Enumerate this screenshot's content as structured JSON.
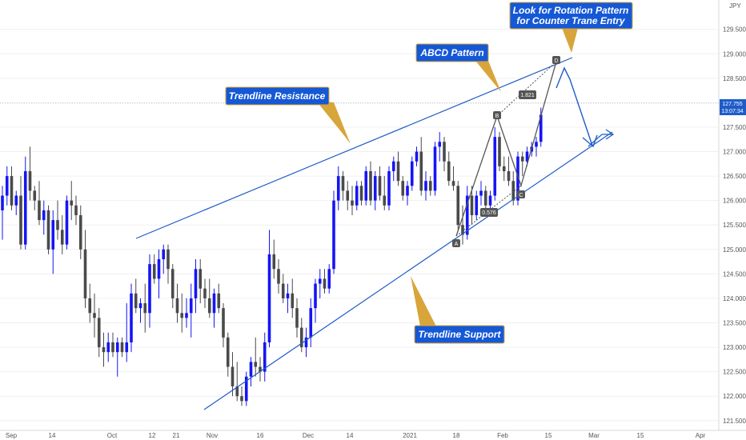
{
  "chart_data": {
    "type": "candlestick",
    "symbol_currency": "JPY",
    "ylim": [
      121.3,
      130.1
    ],
    "y_ticks": [
      "121.500",
      "122.000",
      "122.500",
      "123.000",
      "123.500",
      "124.000",
      "124.500",
      "125.000",
      "125.500",
      "126.000",
      "126.500",
      "127.000",
      "127.500",
      "128.000",
      "128.500",
      "129.000",
      "129.500"
    ],
    "x_labels": [
      "Sep",
      "14",
      "Oct",
      "12",
      "21",
      "Nov",
      "16",
      "Dec",
      "14",
      "2021",
      "18",
      "Feb",
      "15",
      "Mar",
      "15",
      "Apr"
    ],
    "current_price": "127.755",
    "countdown": "13:07:34",
    "candles": [
      [
        125.8,
        126.3,
        125.2,
        126.1
      ],
      [
        126.1,
        126.7,
        125.9,
        126.5
      ],
      [
        126.5,
        126.7,
        125.8,
        125.9
      ],
      [
        125.9,
        126.2,
        125.7,
        126.1
      ],
      [
        126.1,
        126.5,
        125.0,
        125.1
      ],
      [
        125.1,
        126.9,
        125.0,
        126.6
      ],
      [
        126.6,
        127.1,
        126.0,
        126.2
      ],
      [
        126.2,
        126.3,
        125.8,
        126.0
      ],
      [
        126.0,
        126.4,
        125.5,
        125.6
      ],
      [
        125.6,
        126.0,
        125.3,
        125.8
      ],
      [
        125.8,
        125.9,
        124.9,
        125.0
      ],
      [
        125.0,
        125.8,
        124.5,
        125.6
      ],
      [
        125.6,
        126.0,
        125.2,
        125.4
      ],
      [
        125.4,
        125.7,
        124.9,
        125.1
      ],
      [
        125.1,
        126.1,
        125.0,
        126.0
      ],
      [
        126.0,
        126.4,
        125.6,
        125.9
      ],
      [
        125.9,
        126.1,
        125.5,
        125.7
      ],
      [
        125.7,
        125.9,
        124.8,
        125.0
      ],
      [
        125.0,
        125.4,
        123.8,
        124.0
      ],
      [
        124.0,
        124.3,
        123.5,
        123.7
      ],
      [
        123.7,
        124.1,
        123.2,
        123.6
      ],
      [
        123.6,
        123.8,
        122.8,
        123.0
      ],
      [
        123.0,
        123.3,
        122.6,
        122.9
      ],
      [
        122.9,
        123.3,
        122.7,
        123.1
      ],
      [
        123.1,
        123.3,
        122.8,
        122.9
      ],
      [
        122.9,
        123.2,
        122.4,
        123.1
      ],
      [
        123.1,
        123.2,
        122.8,
        122.9
      ],
      [
        122.9,
        123.9,
        122.7,
        123.1
      ],
      [
        123.1,
        124.3,
        122.9,
        124.1
      ],
      [
        124.1,
        124.4,
        123.7,
        123.8
      ],
      [
        123.8,
        124.0,
        123.5,
        123.9
      ],
      [
        123.9,
        124.3,
        123.3,
        123.7
      ],
      [
        123.7,
        124.9,
        123.4,
        124.7
      ],
      [
        124.7,
        124.9,
        124.3,
        124.4
      ],
      [
        124.4,
        125.0,
        124.0,
        124.8
      ],
      [
        124.8,
        125.1,
        124.5,
        125.0
      ],
      [
        125.0,
        125.1,
        124.3,
        124.6
      ],
      [
        124.6,
        124.7,
        123.8,
        124.0
      ],
      [
        124.0,
        124.3,
        123.5,
        123.7
      ],
      [
        123.7,
        124.1,
        123.3,
        123.6
      ],
      [
        123.6,
        124.0,
        123.4,
        123.7
      ],
      [
        123.7,
        124.3,
        123.2,
        124.0
      ],
      [
        124.0,
        124.8,
        123.7,
        124.6
      ],
      [
        124.6,
        124.8,
        123.9,
        124.2
      ],
      [
        124.2,
        124.4,
        123.8,
        124.0
      ],
      [
        124.0,
        124.4,
        123.6,
        123.7
      ],
      [
        123.7,
        124.2,
        123.4,
        124.1
      ],
      [
        124.1,
        124.3,
        123.7,
        123.8
      ],
      [
        123.8,
        123.9,
        123.0,
        123.2
      ],
      [
        123.2,
        123.3,
        122.4,
        122.6
      ],
      [
        122.6,
        122.9,
        122.0,
        122.2
      ],
      [
        122.2,
        122.7,
        121.9,
        122.0
      ],
      [
        122.0,
        122.2,
        121.8,
        121.9
      ],
      [
        121.9,
        122.5,
        121.8,
        122.4
      ],
      [
        122.4,
        122.8,
        122.2,
        122.7
      ],
      [
        122.7,
        123.2,
        122.4,
        122.6
      ],
      [
        122.6,
        122.8,
        122.3,
        122.5
      ],
      [
        122.5,
        123.3,
        122.3,
        123.1
      ],
      [
        123.1,
        125.4,
        123.0,
        124.9
      ],
      [
        124.9,
        125.2,
        124.4,
        124.6
      ],
      [
        124.6,
        124.8,
        124.1,
        124.3
      ],
      [
        124.3,
        124.5,
        123.9,
        124.0
      ],
      [
        124.0,
        124.3,
        123.7,
        124.1
      ],
      [
        124.1,
        124.4,
        123.6,
        123.8
      ],
      [
        123.8,
        124.0,
        123.2,
        123.4
      ],
      [
        123.4,
        123.6,
        122.9,
        123.0
      ],
      [
        123.0,
        123.4,
        122.8,
        123.2
      ],
      [
        123.2,
        124.0,
        123.0,
        123.8
      ],
      [
        123.8,
        124.4,
        123.5,
        124.3
      ],
      [
        124.3,
        124.6,
        124.0,
        124.4
      ],
      [
        124.4,
        124.6,
        124.1,
        124.2
      ],
      [
        124.2,
        124.7,
        124.1,
        124.6
      ],
      [
        124.6,
        126.2,
        124.5,
        126.0
      ],
      [
        126.0,
        126.7,
        125.8,
        126.5
      ],
      [
        126.5,
        126.6,
        126.0,
        126.2
      ],
      [
        126.2,
        126.4,
        125.8,
        126.0
      ],
      [
        126.0,
        126.3,
        125.7,
        125.9
      ],
      [
        125.9,
        126.4,
        125.8,
        126.3
      ],
      [
        126.3,
        126.4,
        125.9,
        126.0
      ],
      [
        126.0,
        126.7,
        125.9,
        126.6
      ],
      [
        126.6,
        126.8,
        125.9,
        126.0
      ],
      [
        126.0,
        126.6,
        125.8,
        126.5
      ],
      [
        126.5,
        126.7,
        126.0,
        126.1
      ],
      [
        126.1,
        126.5,
        125.8,
        125.9
      ],
      [
        125.9,
        126.7,
        125.8,
        126.6
      ],
      [
        126.6,
        126.9,
        126.4,
        126.8
      ],
      [
        126.8,
        127.0,
        126.3,
        126.4
      ],
      [
        126.4,
        126.5,
        126.0,
        126.1
      ],
      [
        126.1,
        126.4,
        125.9,
        126.3
      ],
      [
        126.3,
        126.9,
        126.2,
        126.8
      ],
      [
        126.8,
        127.1,
        126.7,
        127.0
      ],
      [
        127.0,
        127.3,
        126.1,
        126.2
      ],
      [
        126.2,
        126.6,
        126.0,
        126.4
      ],
      [
        126.4,
        126.5,
        126.1,
        126.2
      ],
      [
        126.2,
        127.2,
        126.1,
        127.1
      ],
      [
        127.1,
        127.4,
        126.8,
        127.2
      ],
      [
        127.2,
        127.3,
        126.6,
        126.8
      ],
      [
        126.8,
        127.0,
        126.3,
        126.4
      ],
      [
        126.4,
        126.7,
        126.2,
        126.3
      ],
      [
        126.3,
        126.4,
        125.4,
        125.5
      ],
      [
        125.5,
        125.9,
        125.1,
        125.3
      ],
      [
        125.3,
        126.3,
        125.2,
        126.1
      ],
      [
        126.1,
        126.3,
        125.5,
        125.7
      ],
      [
        125.7,
        126.2,
        125.6,
        126.1
      ],
      [
        126.1,
        126.4,
        125.9,
        126.2
      ],
      [
        126.2,
        126.3,
        125.8,
        125.9
      ],
      [
        125.9,
        126.2,
        125.7,
        126.1
      ],
      [
        126.1,
        127.5,
        126.0,
        127.3
      ],
      [
        127.3,
        127.4,
        126.6,
        126.7
      ],
      [
        126.7,
        126.9,
        126.4,
        126.6
      ],
      [
        126.6,
        126.9,
        126.3,
        126.4
      ],
      [
        126.4,
        126.6,
        125.9,
        126.0
      ],
      [
        126.0,
        127.0,
        125.9,
        126.9
      ],
      [
        126.9,
        127.0,
        126.5,
        126.8
      ],
      [
        126.8,
        127.1,
        126.7,
        127.0
      ],
      [
        127.0,
        127.2,
        126.9,
        127.1
      ],
      [
        127.1,
        127.3,
        126.9,
        127.2
      ],
      [
        127.2,
        127.9,
        127.1,
        127.755
      ]
    ],
    "annotations": {
      "resistance_label": "Trendline Resistance",
      "support_label": "Trendline Support",
      "abcd_label": "ABCD Pattern",
      "rotation_label_line1": "Look for Rotation Pattern",
      "rotation_label_line2": "for Counter Trane Entry",
      "points": [
        "A",
        "B",
        "C",
        "D"
      ],
      "ratio_bc": "0.576",
      "ratio_cd": "1.821"
    }
  },
  "colors": {
    "up": "#1515f5",
    "down": "#4a4a4a",
    "trendline": "#1e5cc8",
    "callout_bg": "#1558d6",
    "callout_border": "#d8a53a",
    "price_tag": "#1e5cc8"
  }
}
